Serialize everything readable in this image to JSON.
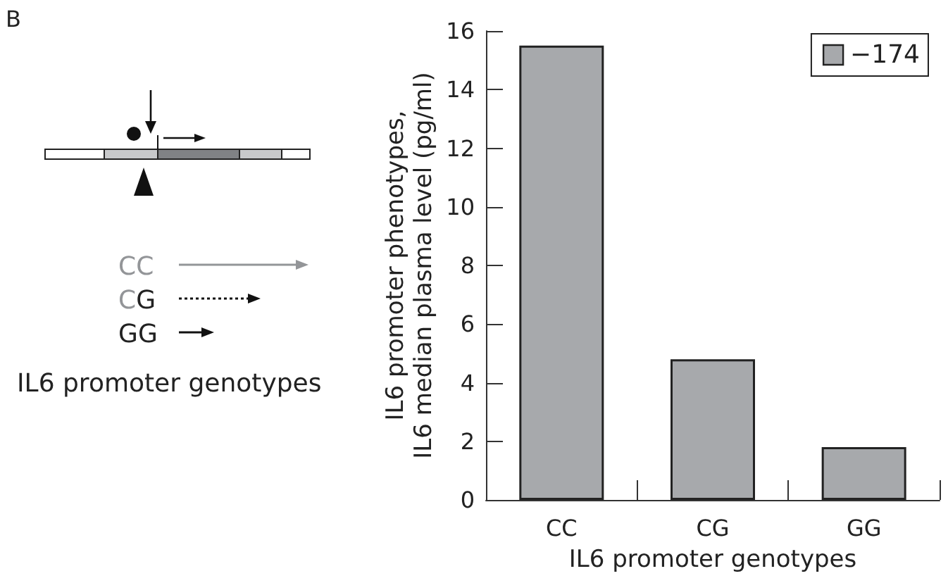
{
  "chart_data": {
    "type": "bar",
    "categories": [
      "CC",
      "CG",
      "GG"
    ],
    "series": [
      {
        "name": "−174",
        "color": "#a7a9ac",
        "values": [
          15.5,
          4.8,
          1.8
        ]
      }
    ],
    "ylim": [
      0,
      16
    ],
    "yticks": [
      0,
      2,
      4,
      6,
      8,
      10,
      12,
      14,
      16
    ],
    "xlabel": "IL6 promoter genotypes",
    "ylabel": "IL6 promoter phenotypes, IL6 median plasma level (pg/ml)",
    "legend": "top right",
    "grid": false,
    "annotations": [
      "B",
      "CC",
      "CG",
      "GG",
      "IL6 promoter genotypes"
    ]
  }
}
